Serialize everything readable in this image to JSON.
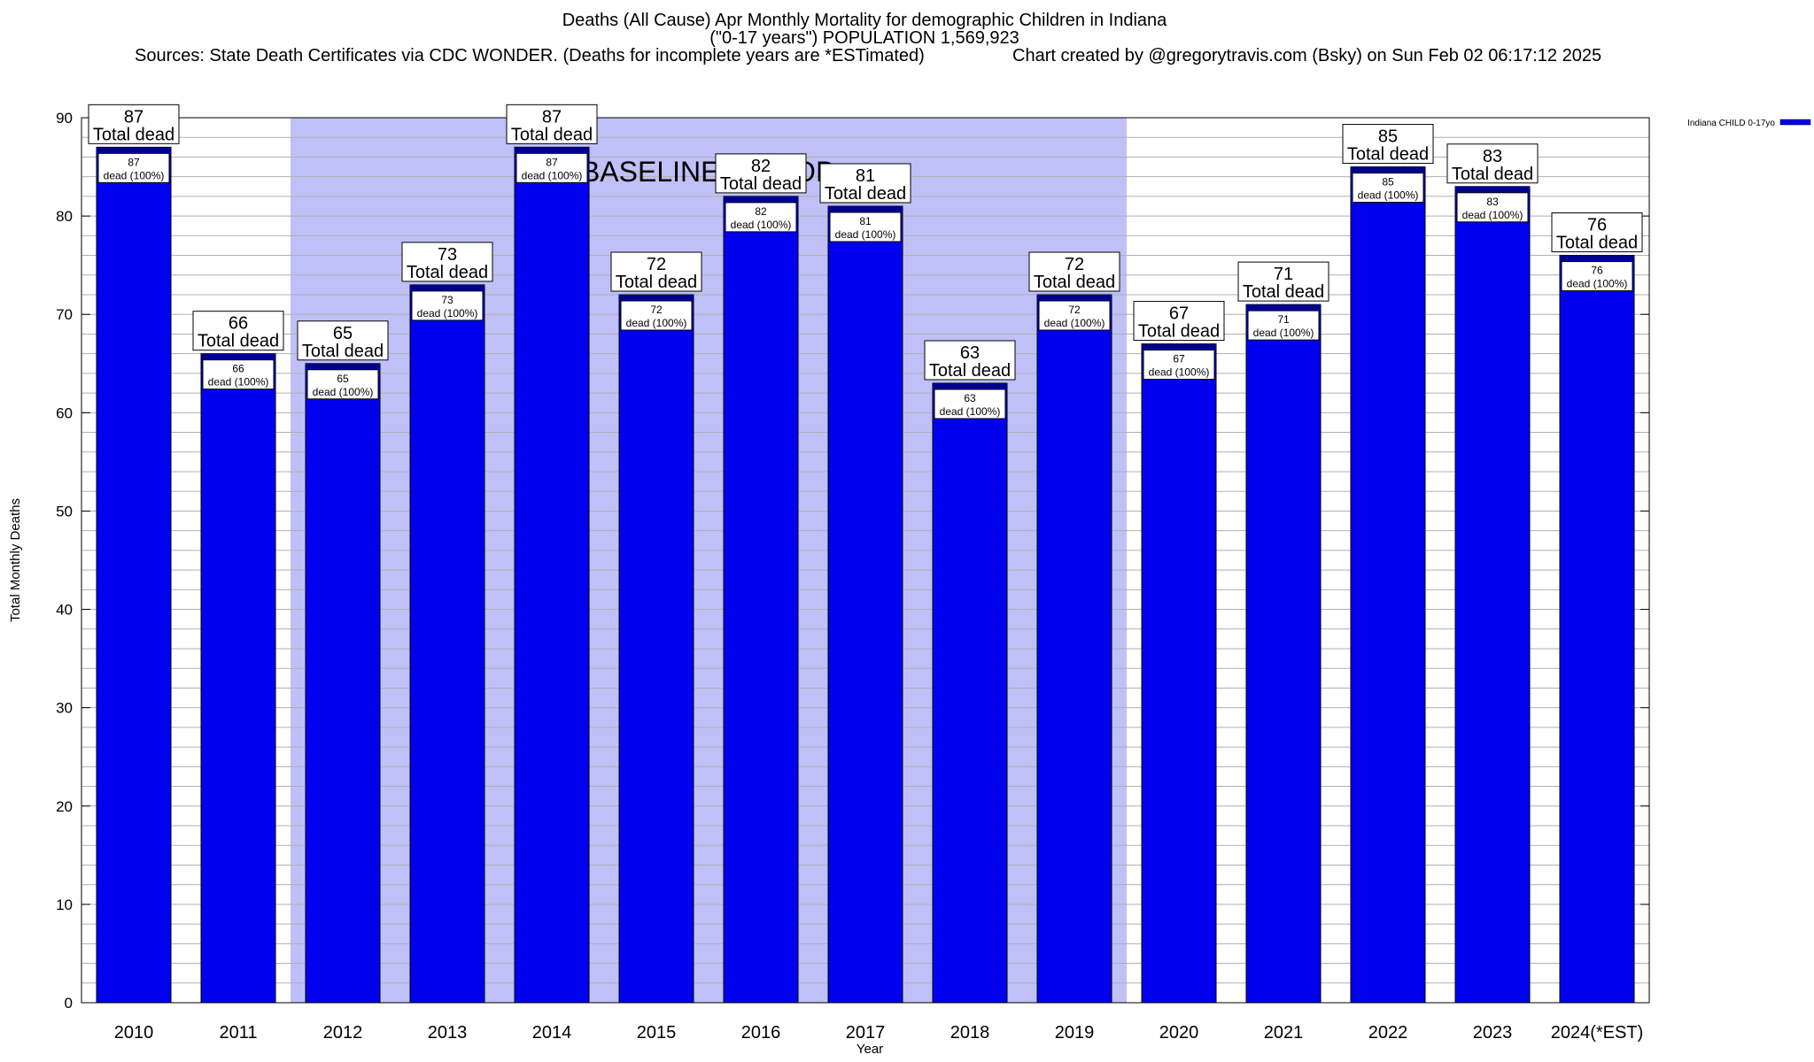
{
  "header": {
    "title_line1": "Deaths (All Cause) Apr Monthly Mortality for demographic Children in Indiana",
    "title_line2": "(\"0-17 years\") POPULATION 1,569,923",
    "sources": "Sources: State Death Certificates via CDC WONDER. (Deaths for incomplete years are *ESTimated)",
    "credit": "Chart created by @gregorytravis.com (Bsky) on Sun Feb 02 06:17:12 2025"
  },
  "colors": {
    "bar": "#0000ee",
    "bar_top": "#00008b",
    "baseline_band": "#c0c0f8",
    "grid": "#b0b0b0"
  },
  "chart_data": {
    "type": "bar",
    "xlabel": "Year",
    "ylabel": "Total Monthly Deaths",
    "ylim": [
      0,
      90
    ],
    "yticks": [
      0,
      10,
      20,
      30,
      40,
      50,
      60,
      70,
      80,
      90
    ],
    "grid": true,
    "legend_position": "top-right",
    "categories": [
      "2010",
      "2011",
      "2012",
      "2013",
      "2014",
      "2015",
      "2016",
      "2017",
      "2018",
      "2019",
      "2020",
      "2021",
      "2022",
      "2023",
      "2024(*EST)"
    ],
    "series": [
      {
        "name": "Indiana CHILD 0-17yo",
        "values": [
          87,
          66,
          65,
          73,
          87,
          72,
          82,
          81,
          63,
          72,
          67,
          71,
          85,
          83,
          76
        ]
      }
    ],
    "top_label_suffix": "Total dead",
    "inner_label_suffix": "dead (100%)",
    "baseline": {
      "label": "BASELINE PERIOD",
      "from": "2012",
      "to": "2019"
    }
  }
}
